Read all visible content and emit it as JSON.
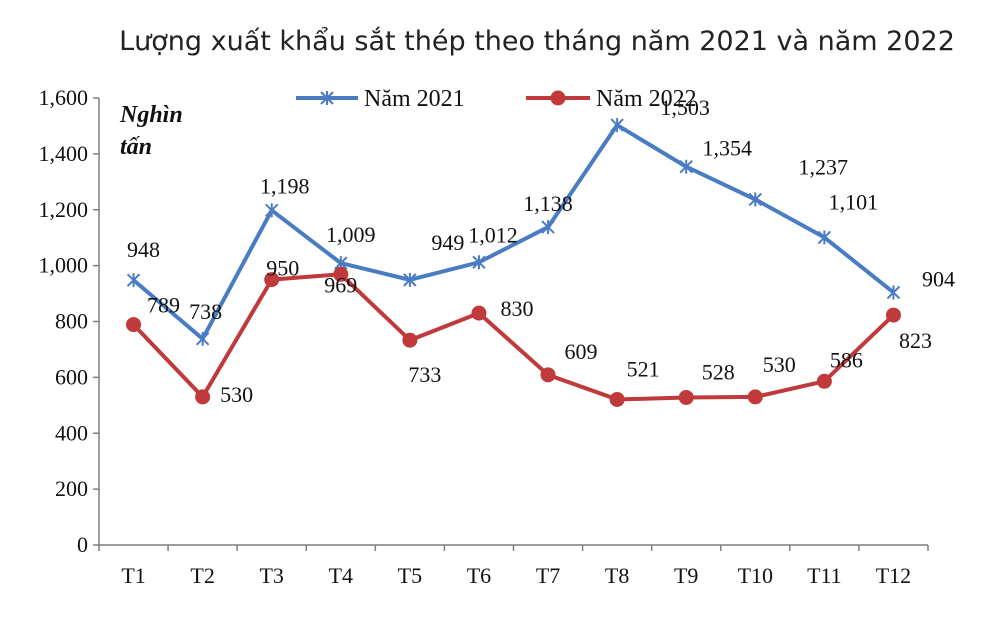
{
  "chart_data": {
    "type": "line",
    "title": "Lượng xuất khẩu sắt thép theo tháng năm 2021 và năm 2022",
    "unit_label_lines": [
      "Nghìn",
      "tấn"
    ],
    "categories": [
      "T1",
      "T2",
      "T3",
      "T4",
      "T5",
      "T6",
      "T7",
      "T8",
      "T9",
      "T10",
      "T11",
      "T12"
    ],
    "ylim": [
      0,
      1600
    ],
    "yticks": [
      0,
      200,
      400,
      600,
      800,
      1000,
      1200,
      1400,
      1600
    ],
    "ytick_labels": [
      "0",
      "200",
      "400",
      "600",
      "800",
      "1,000",
      "1,200",
      "1,400",
      "1,600"
    ],
    "legend_position": "top",
    "series": [
      {
        "name": "Năm 2021",
        "color": "#4a7cc4",
        "marker": "star",
        "values": [
          948,
          738,
          1198,
          1009,
          949,
          1012,
          1138,
          1503,
          1354,
          1237,
          1101,
          904
        ],
        "labels": [
          "948",
          "738",
          "1,198",
          "1,009",
          "949",
          "1,012",
          "1,138",
          "1,503",
          "1,354",
          "1,237",
          "1,101",
          "904"
        ]
      },
      {
        "name": "Năm 2022",
        "color": "#c0393b",
        "marker": "circle",
        "values": [
          789,
          530,
          950,
          969,
          733,
          830,
          609,
          521,
          528,
          530,
          586,
          823
        ],
        "labels": [
          "789",
          "530",
          "950",
          "969",
          "733",
          "830",
          "609",
          "521",
          "528",
          "530",
          "586",
          "823"
        ]
      }
    ]
  }
}
